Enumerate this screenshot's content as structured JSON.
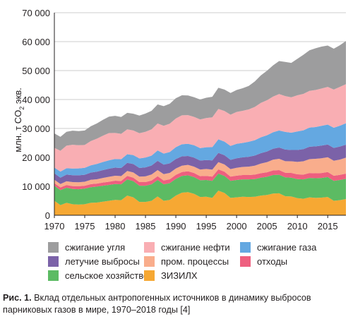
{
  "chart_data": {
    "type": "area",
    "stacked": true,
    "ylabel": "млн. т CO2 экв.",
    "ylabel_main": "млн. т CO",
    "ylabel_sub": "2",
    "ylabel_tail": " экв.",
    "xlim": [
      1970,
      2018
    ],
    "ylim": [
      0,
      70000
    ],
    "x_ticks": [
      1970,
      1975,
      1980,
      1985,
      1990,
      1995,
      2000,
      2005,
      2010,
      2015
    ],
    "y_ticks": [
      0,
      10000,
      20000,
      30000,
      40000,
      50000,
      60000,
      70000
    ],
    "y_tick_labels": [
      "0",
      "10 000",
      "20 000",
      "30 000",
      "40 000",
      "50 000",
      "60 000",
      "70 000"
    ],
    "grid": "y",
    "legend_position": "bottom",
    "x": [
      1970,
      1971,
      1972,
      1973,
      1974,
      1975,
      1976,
      1977,
      1978,
      1979,
      1980,
      1981,
      1982,
      1983,
      1984,
      1985,
      1986,
      1987,
      1988,
      1989,
      1990,
      1991,
      1992,
      1993,
      1994,
      1995,
      1996,
      1997,
      1998,
      1999,
      2000,
      2001,
      2002,
      2003,
      2004,
      2005,
      2006,
      2007,
      2008,
      2009,
      2010,
      2011,
      2012,
      2013,
      2014,
      2015,
      2016,
      2017,
      2018
    ],
    "series": [
      {
        "name": "ЗИЗИЛХ",
        "color": "#f6a833",
        "values": [
          5000,
          3500,
          4300,
          3800,
          3700,
          3800,
          4300,
          4400,
          4700,
          5000,
          5300,
          5200,
          6800,
          6200,
          4600,
          4600,
          5000,
          6500,
          5000,
          5300,
          6800,
          7800,
          8000,
          7400,
          6300,
          6400,
          6000,
          8500,
          7700,
          6000,
          6200,
          6400,
          6300,
          6400,
          6800,
          7000,
          7500,
          7600,
          6600,
          6500,
          5900,
          5700,
          6200,
          6000,
          6100,
          6300,
          5000,
          5200,
          5600
        ]
      },
      {
        "name": "сельское хозяйство",
        "color": "#5cbb63",
        "values": [
          5200,
          5200,
          5200,
          5300,
          5300,
          5400,
          5400,
          5500,
          5500,
          5500,
          5500,
          5500,
          5600,
          5600,
          5600,
          5600,
          5700,
          5700,
          5700,
          5800,
          5800,
          5800,
          5800,
          5800,
          5800,
          5800,
          5900,
          5900,
          5900,
          5900,
          6000,
          6000,
          6100,
          6100,
          6200,
          6300,
          6400,
          6400,
          6500,
          6500,
          6600,
          6700,
          6700,
          6800,
          6800,
          6900,
          6900,
          7000,
          7000
        ]
      },
      {
        "name": "отходы",
        "color": "#ee5f7f",
        "values": [
          900,
          900,
          950,
          950,
          1000,
          1000,
          1050,
          1050,
          1100,
          1100,
          1150,
          1150,
          1200,
          1200,
          1250,
          1250,
          1300,
          1300,
          1300,
          1350,
          1350,
          1350,
          1400,
          1400,
          1400,
          1400,
          1450,
          1450,
          1450,
          1450,
          1500,
          1500,
          1500,
          1550,
          1550,
          1550,
          1600,
          1600,
          1600,
          1650,
          1650,
          1650,
          1700,
          1700,
          1700,
          1750,
          1750,
          1750,
          1800
        ]
      },
      {
        "name": "пром. процессы",
        "color": "#f9ad8c",
        "values": [
          1200,
          1200,
          1300,
          1400,
          1400,
          1400,
          1500,
          1500,
          1600,
          1700,
          1700,
          1700,
          1700,
          1800,
          1900,
          2000,
          2100,
          2100,
          2200,
          2200,
          2200,
          2200,
          2200,
          2200,
          2300,
          2400,
          2400,
          2500,
          2500,
          2600,
          2700,
          2800,
          2900,
          3100,
          3300,
          3500,
          3700,
          3900,
          4000,
          4000,
          4300,
          4600,
          4800,
          5000,
          5100,
          5100,
          5200,
          5300,
          5500
        ]
      },
      {
        "name": "летучие выбросы",
        "color": "#7b62a8",
        "values": [
          2200,
          2200,
          2300,
          2400,
          2400,
          2400,
          2500,
          2600,
          2700,
          2800,
          2800,
          2800,
          2800,
          2900,
          3000,
          3100,
          3100,
          3200,
          3300,
          3300,
          3300,
          3200,
          3100,
          3100,
          3100,
          3100,
          3200,
          3200,
          3200,
          3200,
          3300,
          3300,
          3400,
          3500,
          3600,
          3700,
          3800,
          3900,
          4000,
          3900,
          4100,
          4200,
          4300,
          4300,
          4400,
          4400,
          4400,
          4500,
          4500
        ]
      },
      {
        "name": "сжигание газа",
        "color": "#64a8e1",
        "values": [
          2000,
          2100,
          2200,
          2300,
          2400,
          2400,
          2500,
          2700,
          2800,
          2900,
          3000,
          3000,
          3000,
          3100,
          3300,
          3400,
          3400,
          3600,
          3800,
          3900,
          4100,
          4200,
          4200,
          4300,
          4300,
          4400,
          4600,
          4700,
          4700,
          4800,
          5000,
          5000,
          5200,
          5300,
          5500,
          5600,
          5700,
          5900,
          6100,
          6000,
          6400,
          6500,
          6600,
          6700,
          6800,
          6900,
          7000,
          7200,
          7400
        ]
      },
      {
        "name": "сжигание нефти",
        "color": "#f9aeb3",
        "values": [
          6800,
          7200,
          7800,
          8200,
          8000,
          7900,
          8400,
          8700,
          9100,
          9400,
          9000,
          8800,
          8600,
          8500,
          8700,
          8900,
          9100,
          9300,
          9600,
          9800,
          9900,
          10000,
          9900,
          9800,
          9900,
          10100,
          10300,
          10500,
          10600,
          10800,
          11000,
          11100,
          11200,
          11500,
          11900,
          12100,
          12300,
          12600,
          12400,
          12200,
          12500,
          12600,
          12700,
          12800,
          12900,
          13000,
          13200,
          13400,
          13500
        ]
      },
      {
        "name": "сжигание угля",
        "color": "#9d9d9e",
        "values": [
          5000,
          4800,
          4800,
          4900,
          4900,
          5000,
          5100,
          5300,
          5500,
          5700,
          5900,
          5800,
          5700,
          5800,
          6100,
          6300,
          6400,
          6600,
          6800,
          6900,
          7000,
          6900,
          6800,
          6800,
          6900,
          7000,
          7100,
          7300,
          7400,
          7500,
          7600,
          7800,
          8100,
          8800,
          9500,
          10200,
          10800,
          11400,
          11800,
          11900,
          12600,
          13500,
          14000,
          14400,
          14500,
          14300,
          14100,
          14400,
          14900
        ]
      }
    ]
  },
  "legend_order": [
    "сжигание угля",
    "летучие выбросы",
    "сельское хозяйство",
    "сжигание нефти",
    "пром. процессы",
    "ЗИЗИЛХ",
    "сжигание газа",
    "отходы"
  ],
  "caption": {
    "label": "Рис. 1.",
    "text": " Вклад отдельных антропогенных источников в динамику выбросов парниковых газов в мире, 1970–2018 годы [4]"
  }
}
